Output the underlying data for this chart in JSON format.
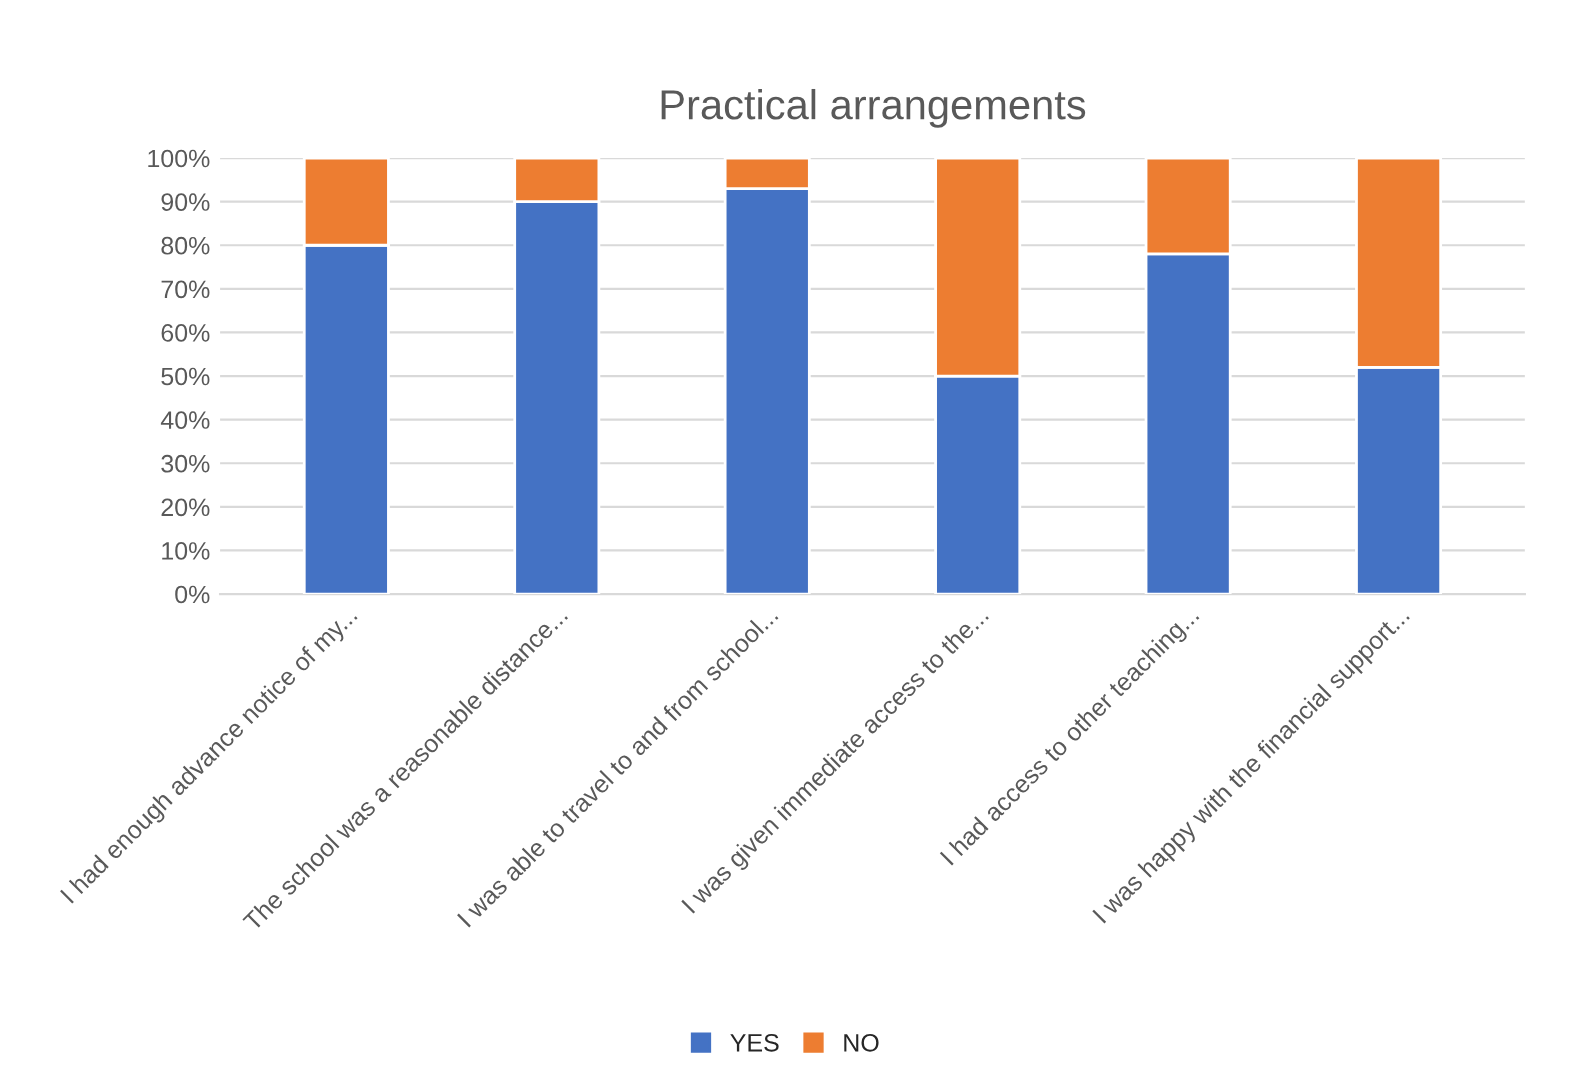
{
  "chart_data": {
    "type": "bar",
    "stacked": true,
    "title": "Practical arrangements",
    "categories": [
      "I had enough advance notice of my...",
      "The school was a reasonable distance...",
      "I was able to travel to and from school...",
      "I was given immediate access to the...",
      "I had access to other teaching...",
      "I was happy with the financial support..."
    ],
    "series": [
      {
        "name": "YES",
        "color": "#4472c4",
        "values": [
          80,
          90,
          93,
          50,
          78,
          52
        ]
      },
      {
        "name": "NO",
        "color": "#ed7d31",
        "values": [
          20,
          10,
          7,
          50,
          22,
          48
        ]
      }
    ],
    "ylim": [
      0,
      100
    ],
    "yticks": [
      {
        "value": 0,
        "label": "0%"
      },
      {
        "value": 10,
        "label": "10%"
      },
      {
        "value": 20,
        "label": "20%"
      },
      {
        "value": 30,
        "label": "30%"
      },
      {
        "value": 40,
        "label": "40%"
      },
      {
        "value": 50,
        "label": "50%"
      },
      {
        "value": 60,
        "label": "60%"
      },
      {
        "value": 70,
        "label": "70%"
      },
      {
        "value": 80,
        "label": "80%"
      },
      {
        "value": 90,
        "label": "90%"
      },
      {
        "value": 100,
        "label": "100%"
      }
    ],
    "grid": "y",
    "legend": "bottom"
  }
}
